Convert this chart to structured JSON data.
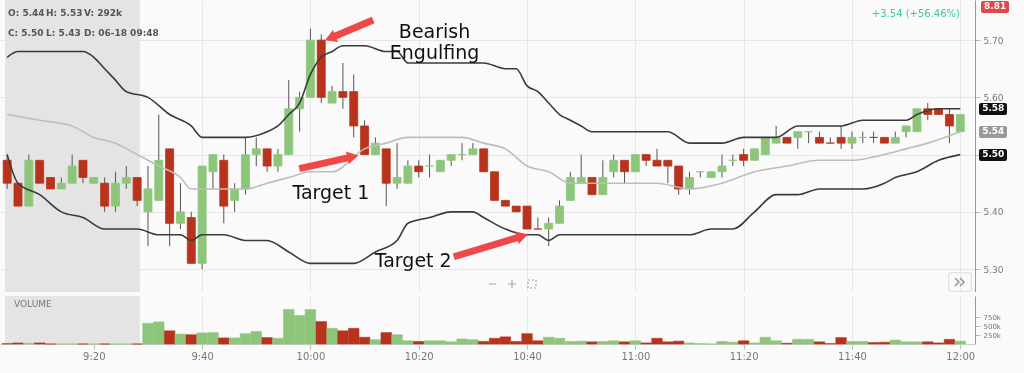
{
  "chart_data": [
    {
      "type": "candlestick",
      "x": [
        9.0667,
        9.1,
        9.1333,
        9.1667,
        9.2,
        9.2333,
        9.2667,
        9.3,
        9.3333,
        9.3667,
        9.4,
        9.4333,
        9.4667,
        9.5,
        9.5333,
        9.5667,
        9.6,
        9.6333,
        9.6667,
        9.7,
        9.7333,
        9.7667,
        9.8,
        9.8333,
        9.8667,
        9.9,
        9.9333,
        9.9667,
        10,
        10.0333,
        10.0667,
        10.1,
        10.1333,
        10.1667,
        10.2,
        10.2333,
        10.2667,
        10.3,
        10.3333,
        10.3667,
        10.4,
        10.4333,
        10.4667,
        10.5,
        10.5333,
        10.5667,
        10.6,
        10.6333,
        10.6667,
        10.7,
        10.7333,
        10.7667,
        10.8,
        10.8333,
        10.8667,
        10.9,
        10.9333,
        10.9667,
        11,
        11.0333,
        11.0667,
        11.1,
        11.1333,
        11.1667,
        11.2,
        11.2333,
        11.2667,
        11.3,
        11.3333,
        11.3667,
        11.4,
        11.4333,
        11.4667,
        11.5,
        11.5333,
        11.5667,
        11.6,
        11.6333,
        11.6667,
        11.7,
        11.7333,
        11.7667,
        11.8,
        11.8333,
        11.8667,
        11.9,
        11.9333,
        11.9667,
        12
      ],
      "ohlc": [
        [
          5.49,
          5.5,
          5.44,
          5.45
        ],
        [
          5.45,
          5.45,
          5.41,
          5.41
        ],
        [
          5.41,
          5.5,
          5.41,
          5.49
        ],
        [
          5.49,
          5.49,
          5.45,
          5.45
        ],
        [
          5.46,
          5.46,
          5.44,
          5.44
        ],
        [
          5.44,
          5.46,
          5.44,
          5.45
        ],
        [
          5.45,
          5.5,
          5.45,
          5.48
        ],
        [
          5.49,
          5.49,
          5.45,
          5.46
        ],
        [
          5.45,
          5.46,
          5.45,
          5.46
        ],
        [
          5.45,
          5.46,
          5.4,
          5.41
        ],
        [
          5.41,
          5.47,
          5.4,
          5.45
        ],
        [
          5.45,
          5.48,
          5.44,
          5.46
        ],
        [
          5.46,
          5.46,
          5.41,
          5.42
        ],
        [
          5.4,
          5.48,
          5.34,
          5.44
        ],
        [
          5.42,
          5.57,
          5.42,
          5.49
        ],
        [
          5.51,
          5.51,
          5.34,
          5.38
        ],
        [
          5.38,
          5.45,
          5.37,
          5.4
        ],
        [
          5.39,
          5.4,
          5.31,
          5.31
        ],
        [
          5.31,
          5.48,
          5.3,
          5.48
        ],
        [
          5.47,
          5.5,
          5.44,
          5.5
        ],
        [
          5.49,
          5.5,
          5.38,
          5.41
        ],
        [
          5.42,
          5.45,
          5.4,
          5.44
        ],
        [
          5.44,
          5.53,
          5.43,
          5.5
        ],
        [
          5.5,
          5.53,
          5.48,
          5.51
        ],
        [
          5.51,
          5.51,
          5.47,
          5.48
        ],
        [
          5.48,
          5.51,
          5.47,
          5.5
        ],
        [
          5.5,
          5.63,
          5.5,
          5.58
        ],
        [
          5.58,
          5.61,
          5.54,
          5.6
        ],
        [
          5.6,
          5.72,
          5.6,
          5.7
        ],
        [
          5.7,
          5.71,
          5.59,
          5.6
        ],
        [
          5.59,
          5.62,
          5.59,
          5.61
        ],
        [
          5.61,
          5.66,
          5.58,
          5.6
        ],
        [
          5.61,
          5.64,
          5.53,
          5.55
        ],
        [
          5.55,
          5.56,
          5.5,
          5.5
        ],
        [
          5.5,
          5.53,
          5.5,
          5.52
        ],
        [
          5.51,
          5.51,
          5.41,
          5.45
        ],
        [
          5.45,
          5.52,
          5.44,
          5.46
        ],
        [
          5.45,
          5.49,
          5.45,
          5.48
        ],
        [
          5.48,
          5.49,
          5.46,
          5.47
        ],
        [
          5.48,
          5.5,
          5.46,
          5.48
        ],
        [
          5.47,
          5.49,
          5.47,
          5.49
        ],
        [
          5.49,
          5.5,
          5.48,
          5.5
        ],
        [
          5.5,
          5.52,
          5.49,
          5.5
        ],
        [
          5.5,
          5.52,
          5.5,
          5.51
        ],
        [
          5.51,
          5.51,
          5.47,
          5.47
        ],
        [
          5.47,
          5.47,
          5.42,
          5.42
        ],
        [
          5.42,
          5.42,
          5.41,
          5.41
        ],
        [
          5.41,
          5.41,
          5.4,
          5.4
        ],
        [
          5.41,
          5.41,
          5.37,
          5.37
        ],
        [
          5.37,
          5.39,
          5.37,
          5.37
        ],
        [
          5.37,
          5.39,
          5.34,
          5.38
        ],
        [
          5.38,
          5.42,
          5.38,
          5.41
        ],
        [
          5.42,
          5.47,
          5.42,
          5.46
        ],
        [
          5.45,
          5.5,
          5.45,
          5.46
        ],
        [
          5.46,
          5.46,
          5.43,
          5.43
        ],
        [
          5.43,
          5.49,
          5.43,
          5.46
        ],
        [
          5.47,
          5.5,
          5.46,
          5.49
        ],
        [
          5.49,
          5.49,
          5.45,
          5.47
        ],
        [
          5.47,
          5.5,
          5.47,
          5.5
        ],
        [
          5.5,
          5.5,
          5.48,
          5.49
        ],
        [
          5.49,
          5.51,
          5.48,
          5.48
        ],
        [
          5.49,
          5.49,
          5.45,
          5.48
        ],
        [
          5.48,
          5.48,
          5.43,
          5.44
        ],
        [
          5.44,
          5.47,
          5.43,
          5.46
        ],
        [
          5.47,
          5.47,
          5.46,
          5.47
        ],
        [
          5.46,
          5.47,
          5.46,
          5.47
        ],
        [
          5.47,
          5.5,
          5.46,
          5.48
        ],
        [
          5.49,
          5.5,
          5.48,
          5.49
        ],
        [
          5.5,
          5.51,
          5.48,
          5.49
        ],
        [
          5.49,
          5.51,
          5.49,
          5.51
        ],
        [
          5.5,
          5.53,
          5.5,
          5.53
        ],
        [
          5.52,
          5.55,
          5.52,
          5.53
        ],
        [
          5.53,
          5.53,
          5.52,
          5.52
        ],
        [
          5.53,
          5.54,
          5.51,
          5.54
        ],
        [
          5.54,
          5.54,
          5.52,
          5.54
        ],
        [
          5.53,
          5.54,
          5.52,
          5.52
        ],
        [
          5.52,
          5.53,
          5.52,
          5.52
        ],
        [
          5.53,
          5.55,
          5.51,
          5.52
        ],
        [
          5.52,
          5.54,
          5.51,
          5.53
        ],
        [
          5.53,
          5.54,
          5.52,
          5.53
        ],
        [
          5.53,
          5.54,
          5.52,
          5.53
        ],
        [
          5.53,
          5.53,
          5.52,
          5.52
        ],
        [
          5.52,
          5.54,
          5.52,
          5.53
        ],
        [
          5.54,
          5.55,
          5.53,
          5.55
        ],
        [
          5.54,
          5.58,
          5.54,
          5.58
        ],
        [
          5.58,
          5.59,
          5.56,
          5.57
        ],
        [
          5.58,
          5.58,
          5.57,
          5.57
        ],
        [
          5.57,
          5.58,
          5.52,
          5.55
        ],
        [
          5.54,
          5.57,
          5.54,
          5.57
        ]
      ],
      "colors": [
        "#b8321c",
        "#b8321c",
        "#8dc67b",
        "#b8321c",
        "#b8321c",
        "#8dc67b",
        "#8dc67b",
        "#b8321c",
        "#8dc67b",
        "#b8321c",
        "#8dc67b",
        "#8dc67b",
        "#b8321c",
        "#8dc67b",
        "#8dc67b",
        "#b8321c",
        "#8dc67b",
        "#b8321c",
        "#8dc67b",
        "#8dc67b",
        "#b8321c",
        "#8dc67b",
        "#8dc67b",
        "#8dc67b",
        "#b8321c",
        "#8dc67b",
        "#8dc67b",
        "#8dc67b",
        "#8dc67b",
        "#b8321c",
        "#8dc67b",
        "#b8321c",
        "#b8321c",
        "#b8321c",
        "#8dc67b",
        "#b8321c",
        "#8dc67b",
        "#8dc67b",
        "#b8321c",
        "#8dc67b",
        "#8dc67b",
        "#8dc67b",
        "#8dc67b",
        "#8dc67b",
        "#b8321c",
        "#b8321c",
        "#b8321c",
        "#b8321c",
        "#b8321c",
        "#b8321c",
        "#8dc67b",
        "#8dc67b",
        "#8dc67b",
        "#8dc67b",
        "#b8321c",
        "#8dc67b",
        "#8dc67b",
        "#b8321c",
        "#8dc67b",
        "#b8321c",
        "#b8321c",
        "#b8321c",
        "#b8321c",
        "#8dc67b",
        "#8dc67b",
        "#8dc67b",
        "#8dc67b",
        "#8dc67b",
        "#b8321c",
        "#8dc67b",
        "#8dc67b",
        "#8dc67b",
        "#b8321c",
        "#8dc67b",
        "#8dc67b",
        "#b8321c",
        "#b8321c",
        "#b8321c",
        "#8dc67b",
        "#8dc67b",
        "#b8321c",
        "#b8321c",
        "#8dc67b",
        "#8dc67b",
        "#8dc67b",
        "#b8321c",
        "#b8321c",
        "#b8321c",
        "#8dc67b"
      ],
      "series": [
        {
          "type": "line",
          "color": "#3a3a3a",
          "x": [
            9.0667,
            9.1,
            9.1667,
            9.2333,
            9.3,
            9.3333,
            9.3667,
            9.4,
            9.4333,
            9.5,
            9.5667,
            9.6333,
            9.6667,
            9.7333,
            9.8,
            9.8667,
            9.9,
            9.9333,
            9.9667,
            10,
            10.0333,
            10.0667,
            10.1,
            10.1667,
            10.2333,
            10.2667,
            10.3,
            10.3667,
            10.4667,
            10.5333,
            10.6,
            10.6333,
            10.6667,
            10.7,
            10.7333,
            10.7667,
            10.8,
            10.8333,
            10.8667,
            10.9333,
            11,
            11.0667,
            11.1,
            11.1667,
            11.2,
            11.2667,
            11.3333,
            11.4,
            11.4333,
            11.5,
            11.5667,
            11.6333,
            11.7,
            11.7667,
            11.8333,
            11.8667,
            11.9333,
            12
          ],
          "values": [
            5.67,
            5.68,
            5.68,
            5.68,
            5.68,
            5.67,
            5.65,
            5.63,
            5.61,
            5.6,
            5.57,
            5.55,
            5.53,
            5.53,
            5.53,
            5.54,
            5.55,
            5.57,
            5.59,
            5.64,
            5.67,
            5.68,
            5.69,
            5.69,
            5.68,
            5.68,
            5.66,
            5.66,
            5.66,
            5.66,
            5.65,
            5.65,
            5.62,
            5.61,
            5.59,
            5.57,
            5.56,
            5.55,
            5.54,
            5.54,
            5.54,
            5.54,
            5.54,
            5.52,
            5.52,
            5.52,
            5.53,
            5.53,
            5.53,
            5.55,
            5.55,
            5.55,
            5.56,
            5.56,
            5.56,
            5.57,
            5.58,
            5.58
          ]
        },
        {
          "type": "line",
          "color": "#bdbdbd",
          "x": [
            9.0667,
            9.1667,
            9.2667,
            9.3333,
            9.4,
            9.4667,
            9.5333,
            9.6,
            9.6333,
            9.7,
            9.7667,
            9.8,
            9.8667,
            9.9333,
            10,
            10.0667,
            10.1667,
            10.2333,
            10.3,
            10.4,
            10.4667,
            10.5333,
            10.6,
            10.6667,
            10.7333,
            10.8,
            10.8667,
            10.9333,
            11.0667,
            11.1667,
            11.2667,
            11.3667,
            11.4667,
            11.5667,
            11.6667,
            11.7667,
            11.8333,
            11.9,
            12
          ],
          "values": [
            5.57,
            5.56,
            5.55,
            5.53,
            5.52,
            5.5,
            5.48,
            5.46,
            5.44,
            5.44,
            5.44,
            5.44,
            5.45,
            5.46,
            5.47,
            5.47,
            5.51,
            5.52,
            5.53,
            5.53,
            5.53,
            5.52,
            5.51,
            5.48,
            5.47,
            5.45,
            5.45,
            5.45,
            5.45,
            5.44,
            5.45,
            5.47,
            5.48,
            5.49,
            5.49,
            5.5,
            5.51,
            5.52,
            5.54
          ]
        },
        {
          "type": "line",
          "color": "#3a3a3a",
          "x": [
            9.0667,
            9.1,
            9.1667,
            9.2333,
            9.3,
            9.3667,
            9.4,
            9.4667,
            9.5333,
            9.6,
            9.6333,
            9.6667,
            9.7333,
            9.8,
            9.8667,
            9.9333,
            10,
            10.0667,
            10.1333,
            10.2,
            10.2667,
            10.3,
            10.3667,
            10.4333,
            10.5,
            10.5333,
            10.6,
            10.6667,
            10.7,
            10.7333,
            10.7667,
            10.8667,
            10.9667,
            11.0667,
            11.1667,
            11.2333,
            11.3,
            11.3667,
            11.4333,
            11.5,
            11.5667,
            11.6333,
            11.7,
            11.7667,
            11.8,
            11.8667,
            11.9333,
            12
          ],
          "values": [
            5.5,
            5.45,
            5.43,
            5.4,
            5.39,
            5.37,
            5.37,
            5.37,
            5.36,
            5.36,
            5.35,
            5.36,
            5.36,
            5.35,
            5.35,
            5.33,
            5.31,
            5.31,
            5.31,
            5.33,
            5.35,
            5.38,
            5.39,
            5.4,
            5.4,
            5.39,
            5.37,
            5.36,
            5.36,
            5.35,
            5.36,
            5.36,
            5.36,
            5.36,
            5.36,
            5.37,
            5.37,
            5.4,
            5.43,
            5.43,
            5.44,
            5.44,
            5.44,
            5.45,
            5.46,
            5.47,
            5.49,
            5.5
          ]
        }
      ],
      "xlim": [
        9.06,
        12.03
      ],
      "ylim": [
        5.26,
        5.77
      ],
      "xticks": [
        {
          "value": 9.3333,
          "label": null
        },
        {
          "value": 9.6667,
          "label": null
        },
        {
          "value": 10,
          "label": null
        },
        {
          "value": 10.3333,
          "label": null
        },
        {
          "value": 10.6667,
          "label": null
        },
        {
          "value": 11,
          "label": null
        },
        {
          "value": 11.3333,
          "label": null
        },
        {
          "value": 11.6667,
          "label": null
        },
        {
          "value": 12,
          "label": null
        }
      ],
      "yticks": [
        {
          "value": 5.3,
          "label": "5.30"
        },
        {
          "value": 5.4,
          "label": "5.40"
        },
        {
          "value": 5.5,
          "label": null
        },
        {
          "value": 5.6,
          "label": "5.60"
        },
        {
          "value": 5.7,
          "label": "5.70"
        }
      ],
      "tick_labels": "y",
      "grid": true,
      "bands": [
        {
          "axis": "x",
          "from": 9.06,
          "to": 9.475,
          "color": "#e4e4e4"
        }
      ],
      "annotations": [
        "O: 5.44",
        "H: 5.53",
        "V: 292k",
        "C: 5.50",
        "L: 5.43",
        "D: 06-18 09:48",
        "+3.54 (+56.46%)",
        "8.81",
        {
          "text": "Bearish Engulfing",
          "x": 10.047,
          "y": 5.7
        },
        {
          "text": "Target 1",
          "x": 10.1667,
          "y": 5.5
        },
        {
          "text": "Target 2",
          "x": 10.6667,
          "y": 5.36
        },
        {
          "text": "5.58",
          "x": 12,
          "y": 5.58
        },
        {
          "text": "5.54",
          "x": 12,
          "y": 5.54
        },
        {
          "text": "5.50",
          "x": 12,
          "y": 5.5
        }
      ]
    },
    {
      "type": "bar",
      "title": "VOLUME",
      "x": [
        9.0667,
        9.1,
        9.1333,
        9.1667,
        9.2,
        9.2333,
        9.2667,
        9.3,
        9.3333,
        9.3667,
        9.4,
        9.4333,
        9.4667,
        9.5,
        9.5333,
        9.5667,
        9.6,
        9.6333,
        9.6667,
        9.7,
        9.7333,
        9.7667,
        9.8,
        9.8333,
        9.8667,
        9.9,
        9.9333,
        9.9667,
        10,
        10.0333,
        10.0667,
        10.1,
        10.1333,
        10.1667,
        10.2,
        10.2333,
        10.2667,
        10.3,
        10.3333,
        10.3667,
        10.4,
        10.4333,
        10.4667,
        10.5,
        10.5333,
        10.5667,
        10.6,
        10.6333,
        10.6667,
        10.7,
        10.7333,
        10.7667,
        10.8,
        10.8333,
        10.8667,
        10.9,
        10.9333,
        10.9667,
        11,
        11.0333,
        11.0667,
        11.1,
        11.1333,
        11.1667,
        11.2,
        11.2333,
        11.2667,
        11.3,
        11.3333,
        11.3667,
        11.4,
        11.4333,
        11.4667,
        11.5,
        11.5333,
        11.5667,
        11.6,
        11.6333,
        11.6667,
        11.7,
        11.7333,
        11.7667,
        11.8,
        11.8333,
        11.8667,
        11.9,
        11.9333,
        11.9667,
        12
      ],
      "values": [
        10,
        30,
        20,
        30,
        0,
        0,
        0,
        0,
        0,
        0,
        0,
        0,
        0,
        580,
        620,
        370,
        280,
        260,
        310,
        320,
        170,
        170,
        290,
        350,
        180,
        160,
        970,
        800,
        970,
        630,
        440,
        370,
        440,
        190,
        120,
        320,
        260,
        90,
        70,
        90,
        90,
        60,
        140,
        120,
        70,
        160,
        200,
        70,
        290,
        90,
        190,
        160,
        70,
        80,
        60,
        70,
        90,
        60,
        90,
        30,
        160,
        60,
        80,
        30,
        10,
        0,
        70,
        50,
        90,
        30,
        190,
        90,
        20,
        130,
        130,
        60,
        10,
        180,
        70,
        70,
        40,
        50,
        110,
        60,
        60,
        60,
        30,
        130,
        80
      ],
      "colors": [
        "#b8321c",
        "#b8321c",
        "#8dc67b",
        "#b8321c",
        "#b8321c",
        "#8dc67b",
        "#8dc67b",
        "#b8321c",
        "#8dc67b",
        "#b8321c",
        "#8dc67b",
        "#8dc67b",
        "#b8321c",
        "#8dc67b",
        "#8dc67b",
        "#b8321c",
        "#8dc67b",
        "#b8321c",
        "#8dc67b",
        "#8dc67b",
        "#b8321c",
        "#8dc67b",
        "#8dc67b",
        "#8dc67b",
        "#b8321c",
        "#8dc67b",
        "#8dc67b",
        "#8dc67b",
        "#8dc67b",
        "#b8321c",
        "#8dc67b",
        "#b8321c",
        "#b8321c",
        "#b8321c",
        "#8dc67b",
        "#b8321c",
        "#8dc67b",
        "#8dc67b",
        "#b8321c",
        "#8dc67b",
        "#8dc67b",
        "#8dc67b",
        "#8dc67b",
        "#8dc67b",
        "#b8321c",
        "#b8321c",
        "#b8321c",
        "#b8321c",
        "#b8321c",
        "#b8321c",
        "#8dc67b",
        "#8dc67b",
        "#8dc67b",
        "#8dc67b",
        "#b8321c",
        "#8dc67b",
        "#8dc67b",
        "#b8321c",
        "#8dc67b",
        "#b8321c",
        "#b8321c",
        "#b8321c",
        "#b8321c",
        "#8dc67b",
        "#8dc67b",
        "#8dc67b",
        "#8dc67b",
        "#8dc67b",
        "#b8321c",
        "#8dc67b",
        "#8dc67b",
        "#8dc67b",
        "#b8321c",
        "#8dc67b",
        "#8dc67b",
        "#b8321c",
        "#b8321c",
        "#b8321c",
        "#8dc67b",
        "#8dc67b",
        "#b8321c",
        "#b8321c",
        "#8dc67b",
        "#8dc67b",
        "#8dc67b",
        "#b8321c",
        "#b8321c",
        "#b8321c",
        "#8dc67b"
      ],
      "xlim": [
        9.06,
        12.03
      ],
      "ylim": [
        0,
        1350
      ],
      "xticks": [
        {
          "value": 9.3333,
          "label": "9:20"
        },
        {
          "value": 9.6667,
          "label": "9:40"
        },
        {
          "value": 10,
          "label": "10:00"
        },
        {
          "value": 10.3333,
          "label": "10:20"
        },
        {
          "value": 10.6667,
          "label": "10:40"
        },
        {
          "value": 11,
          "label": "11:00"
        },
        {
          "value": 11.3333,
          "label": "11:20"
        },
        {
          "value": 11.6667,
          "label": "11:40"
        },
        {
          "value": 12,
          "label": "12:00"
        }
      ],
      "yticks": [
        {
          "value": 250,
          "label": "250k"
        },
        {
          "value": 500,
          "label": "500k"
        },
        {
          "value": 750,
          "label": "750k"
        }
      ],
      "grid": "x",
      "bands": [
        {
          "axis": "x",
          "from": 9.06,
          "to": 9.475,
          "color": "#e4e4e4"
        }
      ]
    }
  ]
}
